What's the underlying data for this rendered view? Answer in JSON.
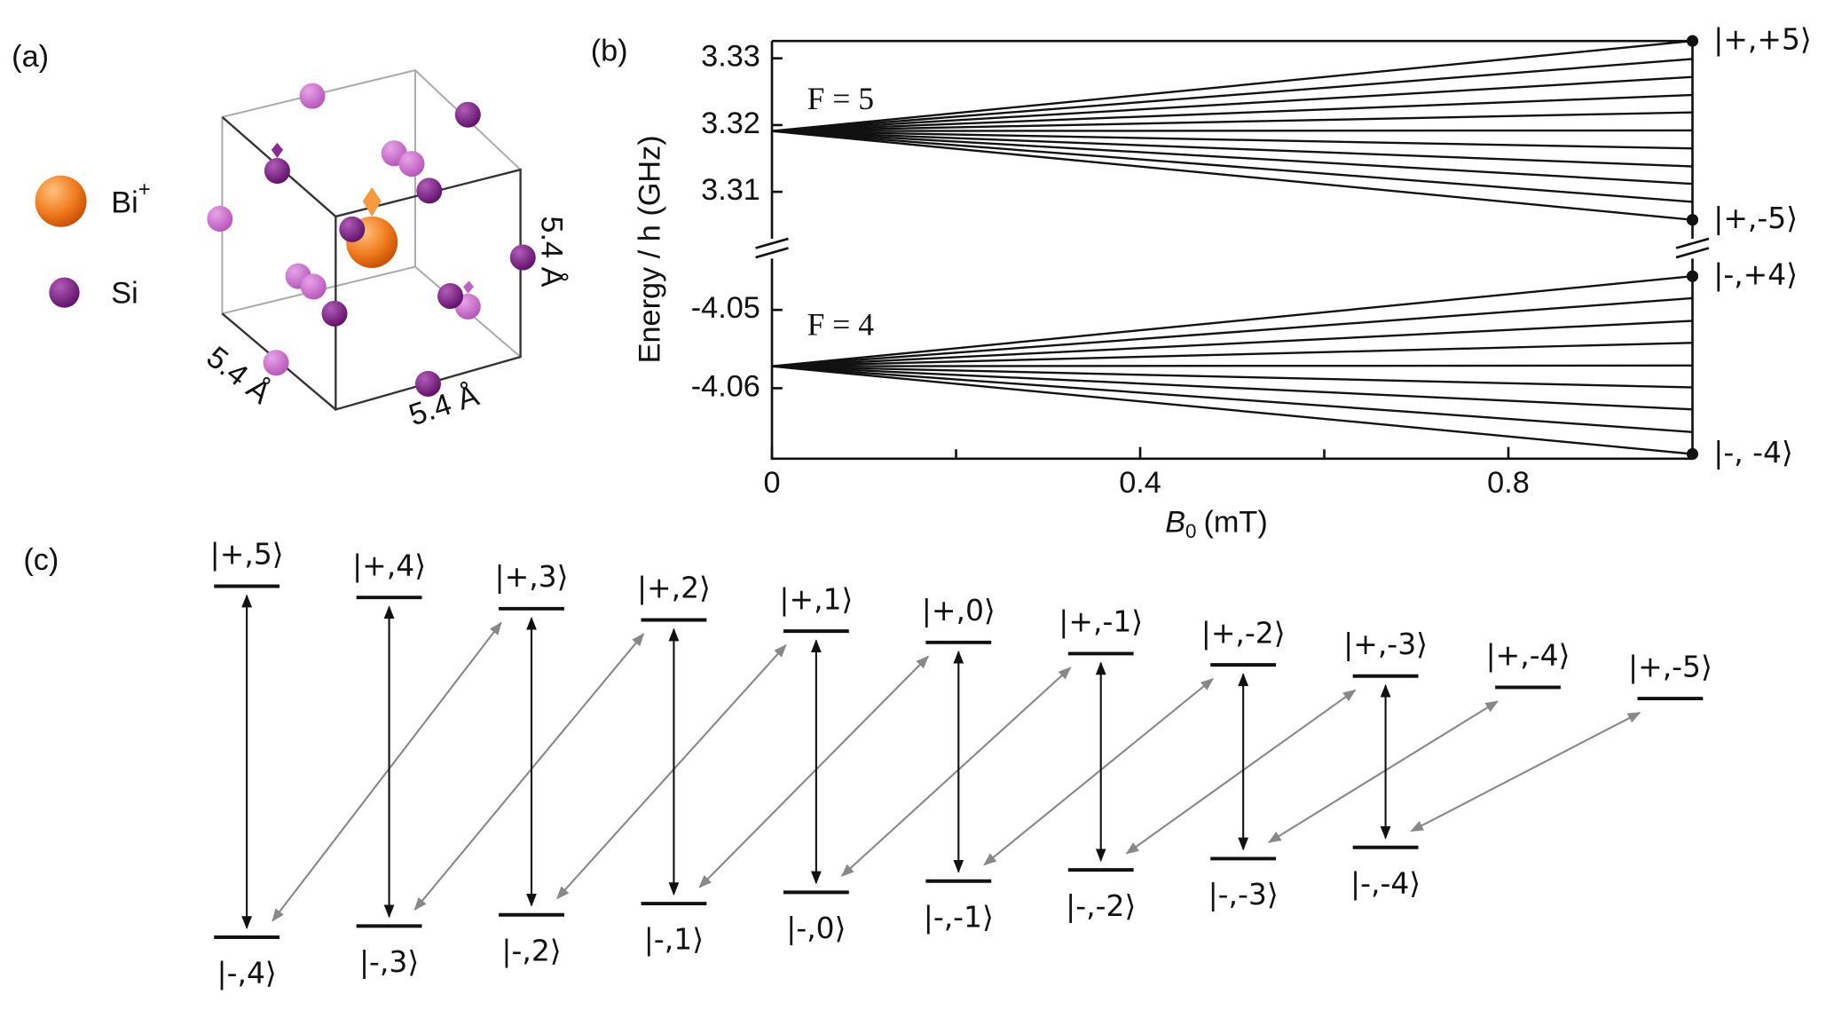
{
  "panel_a": {
    "label": "(a)",
    "legend": [
      {
        "name": "Bi",
        "charge": "+"
      },
      {
        "name": "Si"
      }
    ],
    "lattice_constants": [
      "5.4 Å",
      "5.4 Å",
      "5.4 Å"
    ]
  },
  "chart_data": {
    "type": "line",
    "panel_label": "(b)",
    "x_label": {
      "symbol": "B",
      "subscript": "0",
      "unit": "(mT)"
    },
    "y_label": "Energy / h (GHz)",
    "x": [
      0,
      1
    ],
    "xlim": [
      0,
      1
    ],
    "xticks": [
      0,
      0.4,
      0.8
    ],
    "xminor_ticks": [
      0.2,
      0.6
    ],
    "y_segments": [
      {
        "ylim": [
          3.3028,
          3.3326
        ],
        "yticks": [
          3.31,
          3.32,
          3.33
        ],
        "group_label": "F = 5"
      },
      {
        "ylim": [
          -4.069,
          -4.0433
        ],
        "yticks": [
          -4.06,
          -4.05
        ],
        "group_label": "F = 4"
      }
    ],
    "color": "#111111",
    "series": [
      {
        "segment": 0,
        "values": [
          3.3191,
          3.3326
        ],
        "end_label": "|+,+5⟩"
      },
      {
        "segment": 0,
        "values": [
          3.3191,
          3.3299
        ]
      },
      {
        "segment": 0,
        "values": [
          3.3191,
          3.3272
        ]
      },
      {
        "segment": 0,
        "values": [
          3.3191,
          3.3245
        ]
      },
      {
        "segment": 0,
        "values": [
          3.3191,
          3.3219
        ]
      },
      {
        "segment": 0,
        "values": [
          3.3191,
          3.3192
        ]
      },
      {
        "segment": 0,
        "values": [
          3.3191,
          3.3165
        ]
      },
      {
        "segment": 0,
        "values": [
          3.3191,
          3.3138
        ]
      },
      {
        "segment": 0,
        "values": [
          3.3191,
          3.3112
        ]
      },
      {
        "segment": 0,
        "values": [
          3.3191,
          3.3085
        ]
      },
      {
        "segment": 0,
        "values": [
          3.3191,
          3.3058
        ],
        "end_label": "|+,-5⟩"
      },
      {
        "segment": 1,
        "values": [
          -4.0572,
          -4.0457
        ],
        "end_label": "|-,+4⟩"
      },
      {
        "segment": 1,
        "values": [
          -4.0572,
          -4.0485
        ]
      },
      {
        "segment": 1,
        "values": [
          -4.0572,
          -4.0514
        ]
      },
      {
        "segment": 1,
        "values": [
          -4.0572,
          -4.0542
        ]
      },
      {
        "segment": 1,
        "values": [
          -4.0572,
          -4.0571
        ]
      },
      {
        "segment": 1,
        "values": [
          -4.0572,
          -4.0599
        ]
      },
      {
        "segment": 1,
        "values": [
          -4.0572,
          -4.0627
        ]
      },
      {
        "segment": 1,
        "values": [
          -4.0572,
          -4.0656
        ]
      },
      {
        "segment": 1,
        "values": [
          -4.0572,
          -4.0684
        ],
        "end_label": "|-, -4⟩"
      }
    ]
  },
  "panel_c": {
    "label": "(c)",
    "upper_levels": [
      "|+,5⟩",
      "|+,4⟩",
      "|+,3⟩",
      "|+,2⟩",
      "|+,1⟩",
      "|+,0⟩",
      "|+,-1⟩",
      "|+,-2⟩",
      "|+,-3⟩",
      "|+,-4⟩",
      "|+,-5⟩"
    ],
    "lower_levels": [
      "|-,4⟩",
      "|-,3⟩",
      "|-,2⟩",
      "|-,1⟩",
      "|-,0⟩",
      "|-,-1⟩",
      "|-,-2⟩",
      "|-,-3⟩",
      "|-,-4⟩"
    ]
  }
}
